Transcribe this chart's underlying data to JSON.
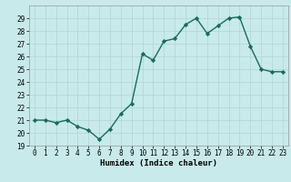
{
  "x": [
    0,
    1,
    2,
    3,
    4,
    5,
    6,
    7,
    8,
    9,
    10,
    11,
    12,
    13,
    14,
    15,
    16,
    17,
    18,
    19,
    20,
    21,
    22,
    23
  ],
  "y": [
    21.0,
    21.0,
    20.8,
    21.0,
    20.5,
    20.2,
    19.5,
    20.3,
    21.5,
    22.3,
    26.2,
    25.7,
    27.2,
    27.4,
    28.5,
    29.0,
    27.8,
    28.4,
    29.0,
    29.1,
    26.8,
    25.0,
    24.8,
    24.8
  ],
  "xlabel": "Humidex (Indice chaleur)",
  "ylim": [
    19,
    30
  ],
  "xlim": [
    -0.5,
    23.5
  ],
  "yticks": [
    19,
    20,
    21,
    22,
    23,
    24,
    25,
    26,
    27,
    28,
    29
  ],
  "xticks": [
    0,
    1,
    2,
    3,
    4,
    5,
    6,
    7,
    8,
    9,
    10,
    11,
    12,
    13,
    14,
    15,
    16,
    17,
    18,
    19,
    20,
    21,
    22,
    23
  ],
  "line_color": "#1a6b5a",
  "marker": "D",
  "marker_size": 2.2,
  "bg_color": "#c8eaea",
  "grid_color": "#b0d4d4",
  "line_width": 1.0,
  "tick_labelsize": 5.5,
  "xlabel_fontsize": 6.5
}
